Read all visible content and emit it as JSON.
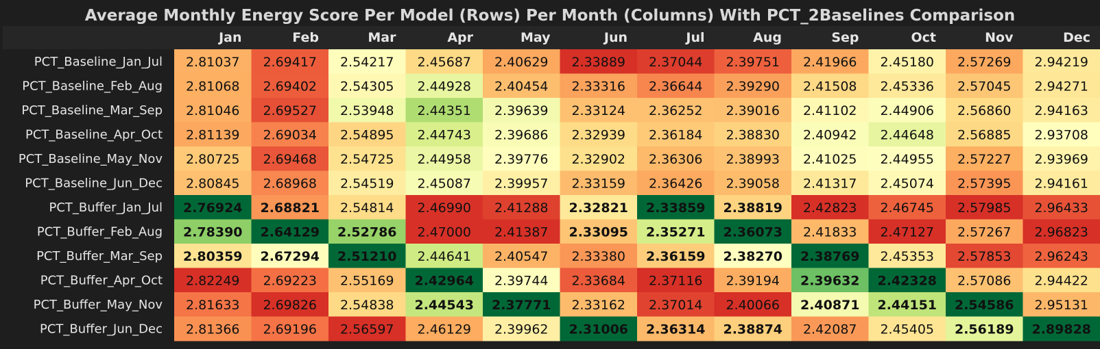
{
  "chart_data": {
    "type": "heatmap",
    "title": "Average Monthly Energy Score Per Model (Rows) Per Month (Columns) With PCT_2Baselines Comparison",
    "columns": [
      "Jan",
      "Feb",
      "Mar",
      "Apr",
      "May",
      "Jun",
      "Jul",
      "Aug",
      "Sep",
      "Oct",
      "Nov",
      "Dec"
    ],
    "rows": [
      "PCT_Baseline_Jan_Jul",
      "PCT_Baseline_Feb_Aug",
      "PCT_Baseline_Mar_Sep",
      "PCT_Baseline_Apr_Oct",
      "PCT_Baseline_May_Nov",
      "PCT_Baseline_Jun_Dec",
      "PCT_Buffer_Jan_Jul",
      "PCT_Buffer_Feb_Aug",
      "PCT_Buffer_Mar_Sep",
      "PCT_Buffer_Apr_Oct",
      "PCT_Buffer_May_Nov",
      "PCT_Buffer_Jun_Dec"
    ],
    "values": [
      [
        2.81037,
        2.69417,
        2.54217,
        2.45687,
        2.40629,
        2.33889,
        2.37044,
        2.39751,
        2.41966,
        2.4518,
        2.57269,
        2.94219
      ],
      [
        2.81068,
        2.69402,
        2.54305,
        2.44928,
        2.40454,
        2.33316,
        2.36644,
        2.3929,
        2.41508,
        2.45336,
        2.57045,
        2.94271
      ],
      [
        2.81046,
        2.69527,
        2.53948,
        2.44351,
        2.39639,
        2.33124,
        2.36252,
        2.39016,
        2.41102,
        2.44906,
        2.5686,
        2.94163
      ],
      [
        2.81139,
        2.69034,
        2.54895,
        2.44743,
        2.39686,
        2.32939,
        2.36184,
        2.3883,
        2.40942,
        2.44648,
        2.56885,
        2.93708
      ],
      [
        2.80725,
        2.69468,
        2.54725,
        2.44958,
        2.39776,
        2.32902,
        2.36306,
        2.38993,
        2.41025,
        2.44955,
        2.57227,
        2.93969
      ],
      [
        2.80845,
        2.68968,
        2.54519,
        2.45087,
        2.39957,
        2.33159,
        2.36426,
        2.39058,
        2.41317,
        2.45074,
        2.57395,
        2.94161
      ],
      [
        2.76924,
        2.68821,
        2.54814,
        2.4699,
        2.41288,
        2.32821,
        2.33859,
        2.38819,
        2.42823,
        2.46745,
        2.57985,
        2.96433
      ],
      [
        2.7839,
        2.64129,
        2.52786,
        2.47,
        2.41387,
        2.33095,
        2.35271,
        2.36073,
        2.41833,
        2.47127,
        2.57267,
        2.96823
      ],
      [
        2.80359,
        2.67294,
        2.5121,
        2.44641,
        2.40547,
        2.3338,
        2.36159,
        2.3827,
        2.38769,
        2.45353,
        2.57853,
        2.96243
      ],
      [
        2.82249,
        2.69223,
        2.55169,
        2.42964,
        2.39744,
        2.33684,
        2.37116,
        2.39194,
        2.39632,
        2.42328,
        2.57086,
        2.94422
      ],
      [
        2.81633,
        2.69826,
        2.54838,
        2.44543,
        2.37771,
        2.33162,
        2.37014,
        2.40066,
        2.40871,
        2.44151,
        2.54586,
        2.95131
      ],
      [
        2.81366,
        2.69196,
        2.56597,
        2.46129,
        2.39962,
        2.31006,
        2.36314,
        2.38874,
        2.42087,
        2.45405,
        2.56189,
        2.89828
      ]
    ],
    "bold": [
      [
        false,
        false,
        false,
        false,
        false,
        false,
        false,
        false,
        false,
        false,
        false,
        false
      ],
      [
        false,
        false,
        false,
        false,
        false,
        false,
        false,
        false,
        false,
        false,
        false,
        false
      ],
      [
        false,
        false,
        false,
        false,
        false,
        false,
        false,
        false,
        false,
        false,
        false,
        false
      ],
      [
        false,
        false,
        false,
        false,
        false,
        false,
        false,
        false,
        false,
        false,
        false,
        false
      ],
      [
        false,
        false,
        false,
        false,
        false,
        false,
        false,
        false,
        false,
        false,
        false,
        false
      ],
      [
        false,
        false,
        false,
        false,
        false,
        false,
        false,
        false,
        false,
        false,
        false,
        false
      ],
      [
        true,
        true,
        false,
        false,
        false,
        true,
        true,
        true,
        false,
        false,
        false,
        false
      ],
      [
        true,
        true,
        true,
        false,
        false,
        true,
        true,
        true,
        false,
        false,
        false,
        false
      ],
      [
        true,
        true,
        true,
        false,
        false,
        false,
        true,
        true,
        true,
        false,
        false,
        false
      ],
      [
        false,
        false,
        false,
        true,
        false,
        false,
        false,
        false,
        true,
        true,
        false,
        false
      ],
      [
        false,
        false,
        false,
        true,
        true,
        false,
        false,
        false,
        true,
        true,
        true,
        false
      ],
      [
        false,
        false,
        false,
        false,
        false,
        true,
        true,
        true,
        false,
        false,
        true,
        true
      ]
    ],
    "colormap": "RdYlGn_r per column (lower = greener)"
  }
}
